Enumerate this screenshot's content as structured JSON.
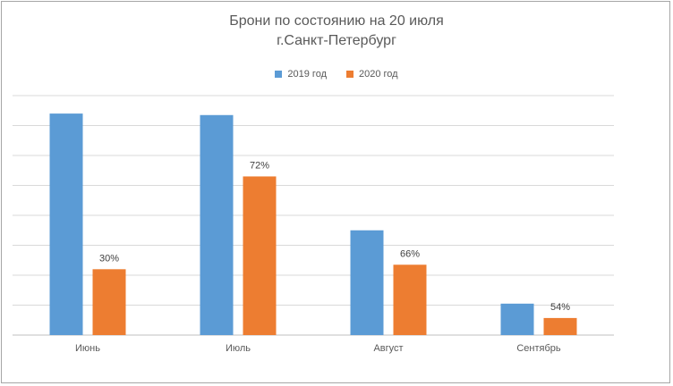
{
  "chart_data": {
    "type": "bar",
    "title": "Брони по состоянию на 20 июля",
    "subtitle": "г.Санкт-Петербург",
    "categories": [
      "Июнь",
      "Июль",
      "Август",
      "Сентябрь"
    ],
    "series": [
      {
        "name": "2019 год",
        "color": "#5b9bd5",
        "values": [
          7.4,
          7.35,
          3.5,
          1.05
        ]
      },
      {
        "name": "2020 год",
        "color": "#ed7d31",
        "values": [
          2.2,
          5.3,
          2.35,
          0.57
        ]
      }
    ],
    "data_labels": [
      "30%",
      "72%",
      "66%",
      "54%"
    ],
    "ylim": [
      0,
      8
    ],
    "grid": true,
    "y_tick_labels_shown": false,
    "legend_position": "top-center"
  }
}
